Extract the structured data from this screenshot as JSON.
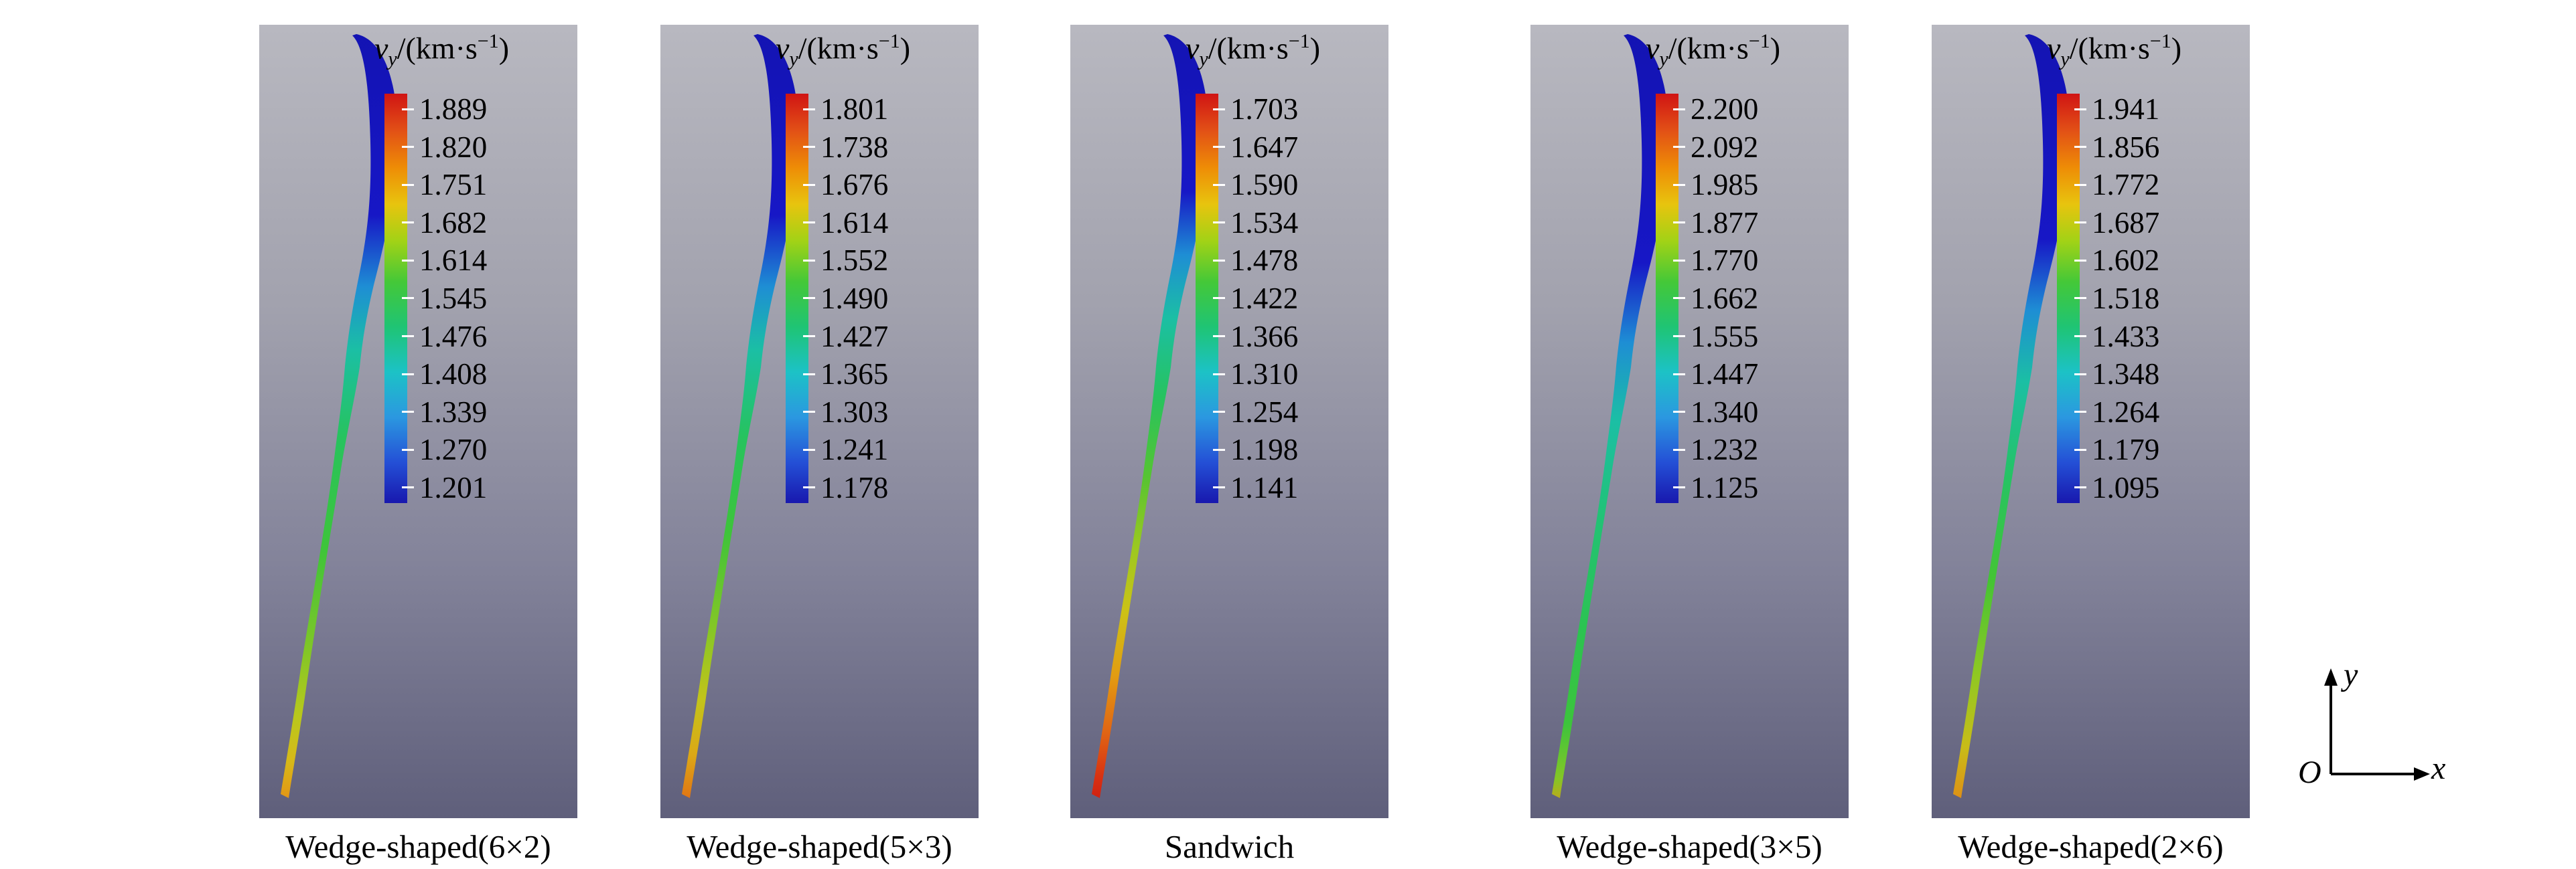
{
  "figure": {
    "legend_title": {
      "var": "v",
      "sub": "y",
      "mid": "/(km·s",
      "sup": "−1",
      "end": ")"
    },
    "panels": [
      {
        "label": "Wedge-shaped(6×2)",
        "ticks": [
          "1.889",
          "1.820",
          "1.751",
          "1.682",
          "1.614",
          "1.545",
          "1.476",
          "1.408",
          "1.339",
          "1.270",
          "1.201"
        ]
      },
      {
        "label": "Wedge-shaped(5×3)",
        "ticks": [
          "1.801",
          "1.738",
          "1.676",
          "1.614",
          "1.552",
          "1.490",
          "1.427",
          "1.365",
          "1.303",
          "1.241",
          "1.178"
        ]
      },
      {
        "label": "Sandwich",
        "ticks": [
          "1.703",
          "1.647",
          "1.590",
          "1.534",
          "1.478",
          "1.422",
          "1.366",
          "1.310",
          "1.254",
          "1.198",
          "1.141"
        ]
      },
      {
        "label": "Wedge-shaped(3×5)",
        "ticks": [
          "2.200",
          "2.092",
          "1.985",
          "1.877",
          "1.770",
          "1.662",
          "1.555",
          "1.447",
          "1.340",
          "1.232",
          "1.125"
        ]
      },
      {
        "label": "Wedge-shaped(2×6)",
        "ticks": [
          "1.941",
          "1.856",
          "1.772",
          "1.687",
          "1.602",
          "1.518",
          "1.433",
          "1.348",
          "1.264",
          "1.179",
          "1.095"
        ]
      }
    ],
    "axes": {
      "origin": "O",
      "x": "x",
      "y": "y"
    },
    "colors": {
      "colormap_top_to_bottom": [
        "#d01414",
        "#e25016",
        "#ee8c06",
        "#e8c40e",
        "#a2d216",
        "#44c838",
        "#1fc474",
        "#1cc2c6",
        "#2b98e0",
        "#2450d6",
        "#1818ae"
      ],
      "viewport_top": "#b8b8c0",
      "viewport_bottom": "#5f5f7b"
    }
  },
  "chart_data": [
    {
      "type": "heatmap",
      "title": "Wedge-shaped(6×2)",
      "legend_title": "v_y/(km·s⁻¹)",
      "colorbar_ticks": [
        1.889,
        1.82,
        1.751,
        1.682,
        1.614,
        1.545,
        1.476,
        1.408,
        1.339,
        1.27,
        1.201
      ],
      "value_range": [
        1.201,
        1.889
      ],
      "colormap": "rainbow (red = high, blue = low)",
      "legend_position": "top-right",
      "content": "Simulated jet colored by vertical velocity: blue (low) at top, orange (high) at bottom tip"
    },
    {
      "type": "heatmap",
      "title": "Wedge-shaped(5×3)",
      "legend_title": "v_y/(km·s⁻¹)",
      "colorbar_ticks": [
        1.801,
        1.738,
        1.676,
        1.614,
        1.552,
        1.49,
        1.427,
        1.365,
        1.303,
        1.241,
        1.178
      ],
      "value_range": [
        1.178,
        1.801
      ],
      "colormap": "rainbow (red = high, blue = low)",
      "legend_position": "top-right",
      "content": "Simulated jet colored by vertical velocity: blue (low) at top, orange-red (high) at bottom tip"
    },
    {
      "type": "heatmap",
      "title": "Sandwich",
      "legend_title": "v_y/(km·s⁻¹)",
      "colorbar_ticks": [
        1.703,
        1.647,
        1.59,
        1.534,
        1.478,
        1.422,
        1.366,
        1.31,
        1.254,
        1.198,
        1.141
      ],
      "value_range": [
        1.141,
        1.703
      ],
      "colormap": "rainbow (red = high, blue = low)",
      "legend_position": "top-right",
      "content": "Simulated jet colored by vertical velocity: blue (low) at top, red (high) at bottom tip"
    },
    {
      "type": "heatmap",
      "title": "Wedge-shaped(3×5)",
      "legend_title": "v_y/(km·s⁻¹)",
      "colorbar_ticks": [
        2.2,
        2.092,
        1.985,
        1.877,
        1.77,
        1.662,
        1.555,
        1.447,
        1.34,
        1.232,
        1.125
      ],
      "value_range": [
        1.125,
        2.2
      ],
      "colormap": "rainbow (red = high, blue = low)",
      "legend_position": "top-right",
      "content": "Simulated jet colored by vertical velocity: blue (low) at top, green body, small orange tip"
    },
    {
      "type": "heatmap",
      "title": "Wedge-shaped(2×6)",
      "legend_title": "v_y/(km·s⁻¹)",
      "colorbar_ticks": [
        1.941,
        1.856,
        1.772,
        1.687,
        1.602,
        1.518,
        1.433,
        1.348,
        1.264,
        1.179,
        1.095
      ],
      "value_range": [
        1.095,
        1.941
      ],
      "colormap": "rainbow (red = high, blue = low)",
      "legend_position": "top-right",
      "content": "Simulated jet colored by vertical velocity: blue (low) at top, green-yellow body, orange tip"
    }
  ]
}
